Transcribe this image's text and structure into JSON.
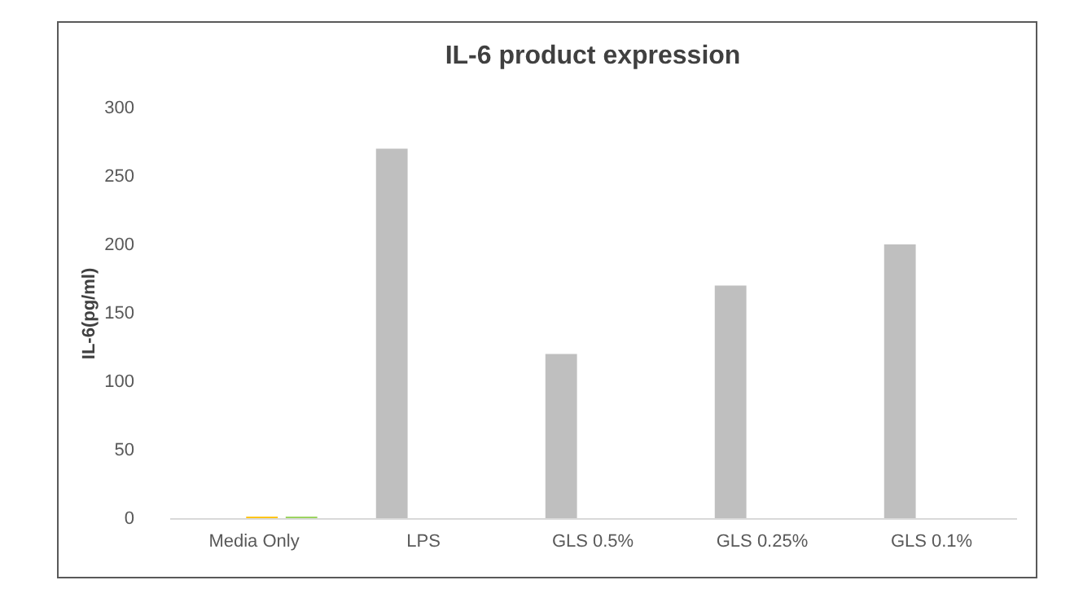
{
  "chart_data": {
    "type": "bar",
    "title": "IL-6 product expression",
    "ylabel": "IL-6(pg/ml)",
    "categories": [
      "Media Only",
      "LPS",
      "GLS 0.5%",
      "GLS 0.25%",
      "GLS 0.1%"
    ],
    "series": [
      {
        "color": "#bfbfbf",
        "values": [
          null,
          270,
          120,
          170,
          200
        ]
      },
      {
        "color": "#ffc000",
        "values": [
          1,
          null,
          null,
          null,
          null
        ]
      },
      {
        "color": "#92d050",
        "values": [
          1,
          null,
          null,
          null,
          null
        ]
      }
    ],
    "ylim": [
      0,
      300
    ],
    "yticks": [
      0,
      50,
      100,
      150,
      200,
      250,
      300
    ],
    "grid": false,
    "legend": false
  }
}
